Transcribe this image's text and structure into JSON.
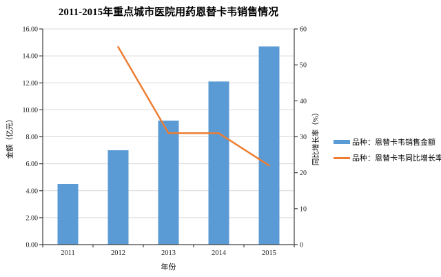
{
  "chart_data": {
    "type": "bar",
    "subtype": "bar+line combo, dual y-axes",
    "title": "2011-2015年重点城市医院用药恩替卡韦销售情况",
    "categories": [
      "2011",
      "2012",
      "2013",
      "2014",
      "2015"
    ],
    "xlabel": "年份",
    "ylabel_left": "金额（亿元）",
    "ylabel_right": "同比增长率（%）",
    "ylim_left": [
      0,
      16
    ],
    "ytick_step_left": 2,
    "ytick_decimals_left": 2,
    "ylim_right": [
      0,
      60
    ],
    "ytick_step_right": 10,
    "grid": "horizontal-only",
    "legend_position": "right",
    "series": [
      {
        "name": "品种：恩替卡韦销售金额",
        "type": "bar",
        "axis": "left",
        "color": "#5B9BD5",
        "values": [
          4.5,
          7.0,
          9.2,
          12.1,
          14.7
        ]
      },
      {
        "name": "品种：恩替卡韦同比增长率",
        "type": "line",
        "axis": "right",
        "color": "#ED7D31",
        "values": [
          null,
          55,
          31,
          31,
          22
        ]
      }
    ]
  },
  "colors": {
    "bar": "#5B9BD5",
    "line": "#ED7D31",
    "gridline": "#D9D9D9",
    "axis": "#404040",
    "tick_text": "#1a1a1a",
    "background": "#ffffff"
  }
}
